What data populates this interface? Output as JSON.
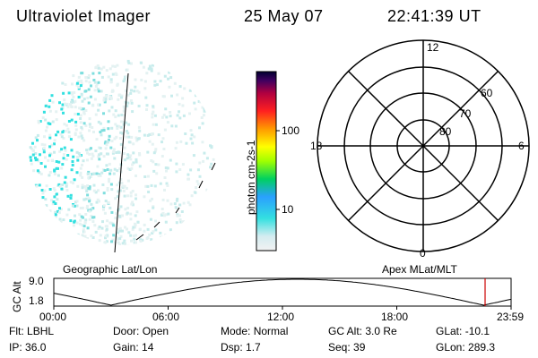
{
  "header": {
    "instrument": "Ultraviolet Imager",
    "date": "25 May 07",
    "time": "22:41:39 UT"
  },
  "colorbar": {
    "unit_label": "photon cm-2s-1",
    "ticks": [
      "100",
      "10"
    ]
  },
  "polar_plot": {
    "mlt_labels": [
      "12",
      "18",
      "6",
      "0"
    ],
    "lat_labels": [
      "60",
      "70",
      "80"
    ]
  },
  "panel_labels": {
    "left": "Geographic Lat/Lon",
    "right": "Apex MLat/MLT"
  },
  "altitude_plot": {
    "ylabel": "GC Alt",
    "yticks": [
      "9.0",
      "1.8"
    ],
    "xticks": [
      "00:00",
      "06:00",
      "12:00",
      "18:00",
      "23:59"
    ]
  },
  "status": {
    "row1": [
      {
        "label": "Flt:",
        "value": "LBHL"
      },
      {
        "label": "Door:",
        "value": "Open"
      },
      {
        "label": "Mode:",
        "value": "Normal"
      },
      {
        "label": "GC Alt:",
        "value": "3.0 Re"
      },
      {
        "label": "GLat:",
        "value": "-10.1"
      }
    ],
    "row2": [
      {
        "label": "IP:",
        "value": "36.0"
      },
      {
        "label": "Gain:",
        "value": "14"
      },
      {
        "label": "Dsp:",
        "value": "1.7"
      },
      {
        "label": "Seq:",
        "value": "39"
      },
      {
        "label": "GLon:",
        "value": "289.3"
      }
    ]
  },
  "colors": {
    "emission_cyan": "#33e0e0",
    "emission_light": "#c8ecec",
    "marker_red": "#cc0000"
  }
}
